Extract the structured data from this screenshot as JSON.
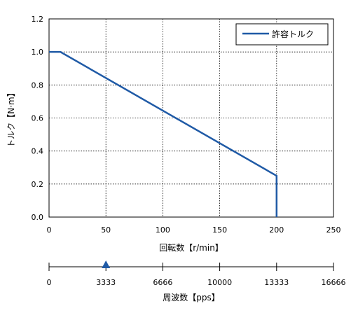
{
  "chart_data": {
    "type": "line",
    "title": "",
    "xlabel": "回転数【r/min】",
    "ylabel": "トルク【N·m】",
    "xlim": [
      0,
      250
    ],
    "ylim": [
      0,
      1.2
    ],
    "x_ticks": [
      0,
      50,
      100,
      150,
      200,
      250
    ],
    "y_ticks": [
      0.0,
      0.2,
      0.4,
      0.6,
      0.8,
      1.0,
      1.2
    ],
    "x_tick_labels": [
      "0",
      "50",
      "100",
      "150",
      "200",
      "250"
    ],
    "y_tick_labels": [
      "0.0",
      "0.2",
      "0.4",
      "0.6",
      "0.8",
      "1.0",
      "1.2"
    ],
    "grid": true,
    "legend_position": "top-right",
    "series": [
      {
        "name": "許容トルク",
        "color": "#1f5aa6",
        "x": [
          0,
          10,
          200,
          200
        ],
        "y": [
          1.0,
          1.0,
          0.25,
          0.0
        ]
      }
    ],
    "secondary_axis": {
      "label": "周波数【pps】",
      "ticks": [
        0,
        3333,
        6666,
        10000,
        13333,
        16666
      ],
      "tick_labels": [
        "0",
        "3333",
        "6666",
        "10000",
        "13333",
        "16666"
      ],
      "marker_value": 3333,
      "marker_color": "#1f5aa6"
    }
  }
}
